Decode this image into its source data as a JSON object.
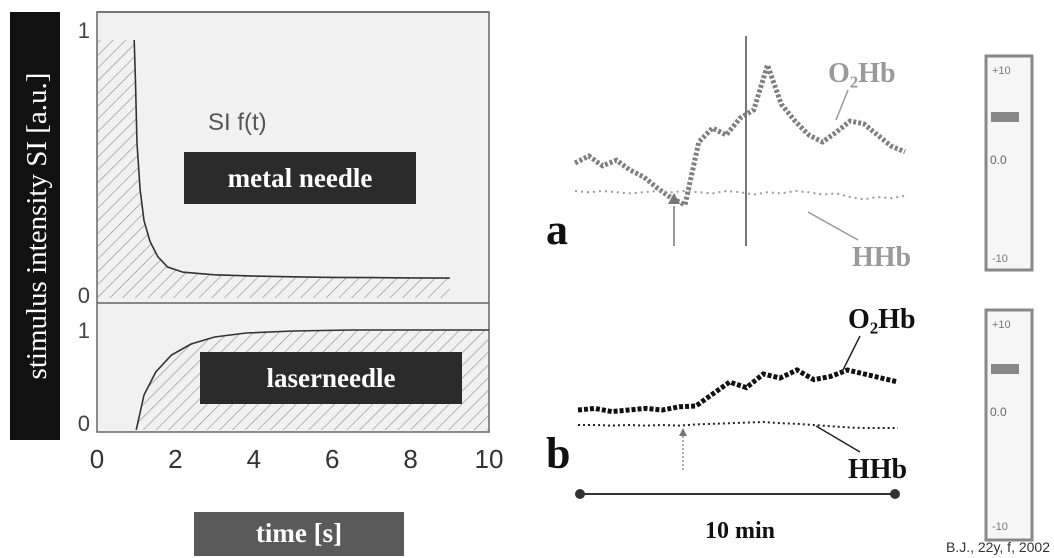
{
  "chart_data": [
    {
      "type": "line",
      "title": "",
      "xlabel": "time [s]",
      "ylabel": "stimulus intensity SI [a.u.]",
      "xlim": [
        0,
        10
      ],
      "x_ticks": [
        "0",
        "2",
        "4",
        "6",
        "8",
        "10"
      ],
      "plot_label": "SI f(t)",
      "panels": [
        {
          "label": "metal needle",
          "y_ticks": [
            "0",
            "1"
          ],
          "ylim": [
            0,
            1
          ],
          "x": [
            0.95,
            0.98,
            1.02,
            1.1,
            1.2,
            1.35,
            1.55,
            1.8,
            2.2,
            3,
            4,
            5,
            6,
            7,
            8,
            9
          ],
          "y": [
            1.0,
            0.85,
            0.6,
            0.42,
            0.3,
            0.22,
            0.16,
            0.12,
            0.1,
            0.09,
            0.085,
            0.082,
            0.08,
            0.079,
            0.078,
            0.077
          ]
        },
        {
          "label": "laserneedle",
          "y_ticks": [
            "0",
            "1"
          ],
          "ylim": [
            0,
            1
          ],
          "x": [
            1.0,
            1.2,
            1.5,
            1.9,
            2.4,
            3.0,
            3.8,
            5.0,
            6.5,
            8.0,
            10.0
          ],
          "y": [
            0.0,
            0.35,
            0.58,
            0.75,
            0.86,
            0.93,
            0.97,
            0.99,
            1.0,
            1.0,
            1.0
          ]
        }
      ]
    },
    {
      "type": "line",
      "panel_label": "a",
      "series": [
        {
          "name": "O2Hb",
          "values": [
            0.3,
            0.35,
            0.28,
            0.32,
            0.25,
            0.2,
            0.12,
            0.05,
            0.0,
            0.45,
            0.55,
            0.5,
            0.62,
            0.68,
            1.0,
            0.72,
            0.6,
            0.5,
            0.45,
            0.52,
            0.6,
            0.58,
            0.5,
            0.42,
            0.38
          ]
        },
        {
          "name": "HHb",
          "values": [
            -0.05,
            -0.06,
            -0.05,
            -0.06,
            -0.07,
            -0.06,
            -0.05,
            -0.06,
            -0.05,
            -0.06,
            -0.07,
            -0.05,
            -0.06,
            -0.08,
            -0.06,
            -0.07,
            -0.05,
            -0.06,
            -0.08,
            -0.07,
            -0.1,
            -0.12,
            -0.1,
            -0.11,
            -0.09
          ]
        }
      ],
      "scale_ticks": [
        "+10",
        "0.0",
        "-10"
      ]
    },
    {
      "type": "line",
      "panel_label": "b",
      "series": [
        {
          "name": "O2Hb",
          "values": [
            0.1,
            0.12,
            0.08,
            0.1,
            0.12,
            0.1,
            0.14,
            0.15,
            0.3,
            0.45,
            0.38,
            0.55,
            0.5,
            0.6,
            0.48,
            0.52,
            0.6,
            0.55,
            0.5,
            0.45
          ]
        },
        {
          "name": "HHb",
          "values": [
            -0.05,
            -0.05,
            -0.06,
            -0.05,
            -0.06,
            -0.05,
            -0.06,
            -0.04,
            -0.03,
            -0.02,
            -0.01,
            0.0,
            -0.02,
            -0.03,
            -0.05,
            -0.07,
            -0.09,
            -0.1,
            -0.1,
            -0.1
          ]
        }
      ],
      "scale_ticks": [
        "+10",
        "0.0",
        "-10"
      ]
    }
  ],
  "labels": {
    "o2hb_a": "O₂Hb",
    "hhb_a": "HHb",
    "o2hb_b": "O₂Hb",
    "hhb_b": "HHb",
    "timebar": "10 min",
    "credit": "B.J., 22y, f, 2002",
    "scale_val_a": "0.0",
    "scale_val_b": "0.0"
  },
  "colors": {
    "dark_box": "#2b2b2b",
    "mid_box": "#555555",
    "trace_a": "#808080",
    "trace_b": "#111111",
    "label_a": "#9a9a9a",
    "label_b": "#111111"
  }
}
